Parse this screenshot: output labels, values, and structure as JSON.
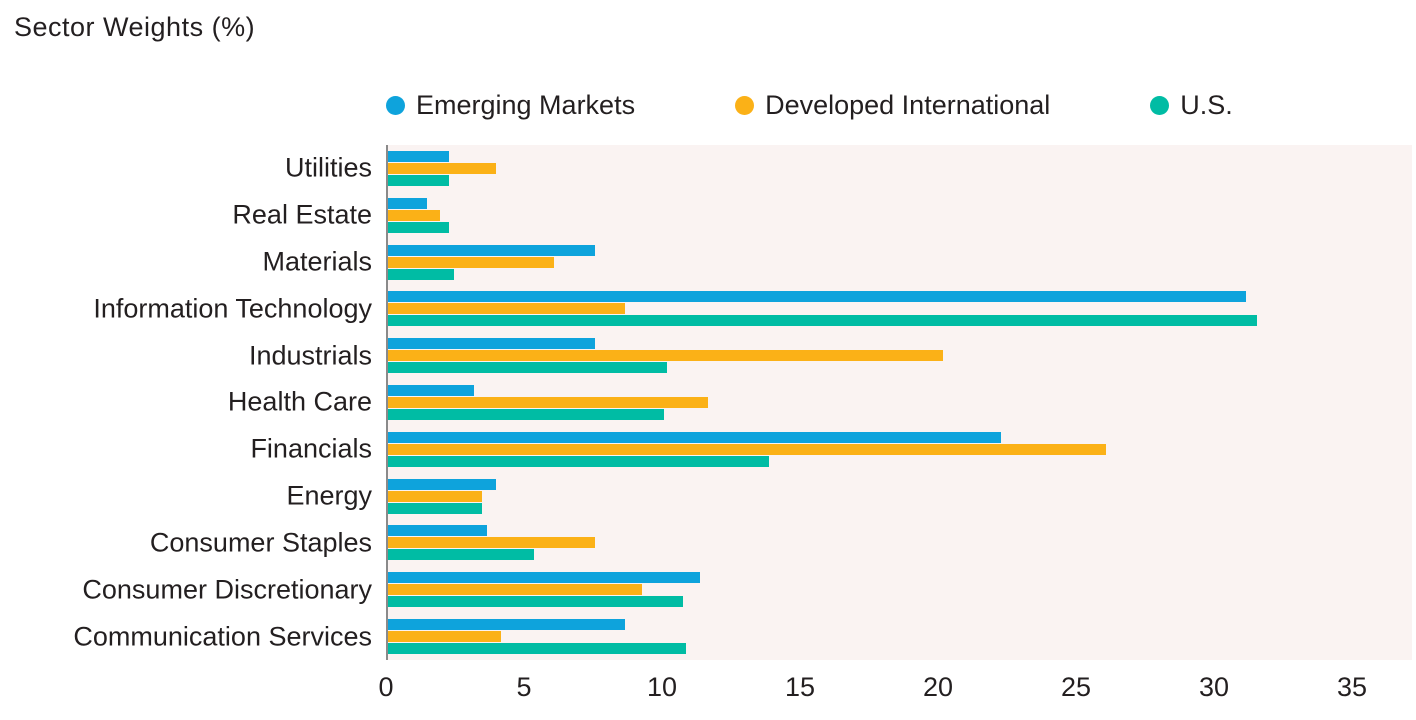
{
  "title": "Sector Weights (%)",
  "legend": {
    "items": [
      {
        "label": "Emerging Markets",
        "color": "#0ea3dc"
      },
      {
        "label": "Developed International",
        "color": "#fbb117"
      },
      {
        "label": "U.S.",
        "color": "#00bca4"
      }
    ]
  },
  "chart_data": {
    "type": "bar",
    "orientation": "horizontal",
    "title": "Sector Weights (%)",
    "categories": [
      "Utilities",
      "Real Estate",
      "Materials",
      "Information Technology",
      "Industrials",
      "Health Care",
      "Financials",
      "Energy",
      "Consumer Staples",
      "Consumer Discretionary",
      "Communication Services"
    ],
    "series": [
      {
        "name": "Emerging Markets",
        "color": "#0ea3dc",
        "values": [
          2.2,
          1.4,
          7.5,
          31.1,
          7.5,
          3.1,
          22.2,
          3.9,
          3.6,
          11.3,
          8.6
        ]
      },
      {
        "name": "Developed International",
        "color": "#fbb117",
        "values": [
          3.9,
          1.9,
          6.0,
          8.6,
          20.1,
          11.6,
          26.0,
          3.4,
          7.5,
          9.2,
          4.1
        ]
      },
      {
        "name": "U.S.",
        "color": "#00bca4",
        "values": [
          2.2,
          2.2,
          2.4,
          31.5,
          10.1,
          10.0,
          13.8,
          3.4,
          5.3,
          10.7,
          10.8
        ]
      }
    ],
    "x_ticks": [
      0,
      5,
      10,
      15,
      20,
      25,
      30,
      35
    ],
    "xlim": [
      0,
      35
    ],
    "grid": false,
    "legend_position": "top",
    "plot_background": "#faf3f2",
    "axis_line_color": "#8a8a8a",
    "text_color": "#231f20"
  }
}
